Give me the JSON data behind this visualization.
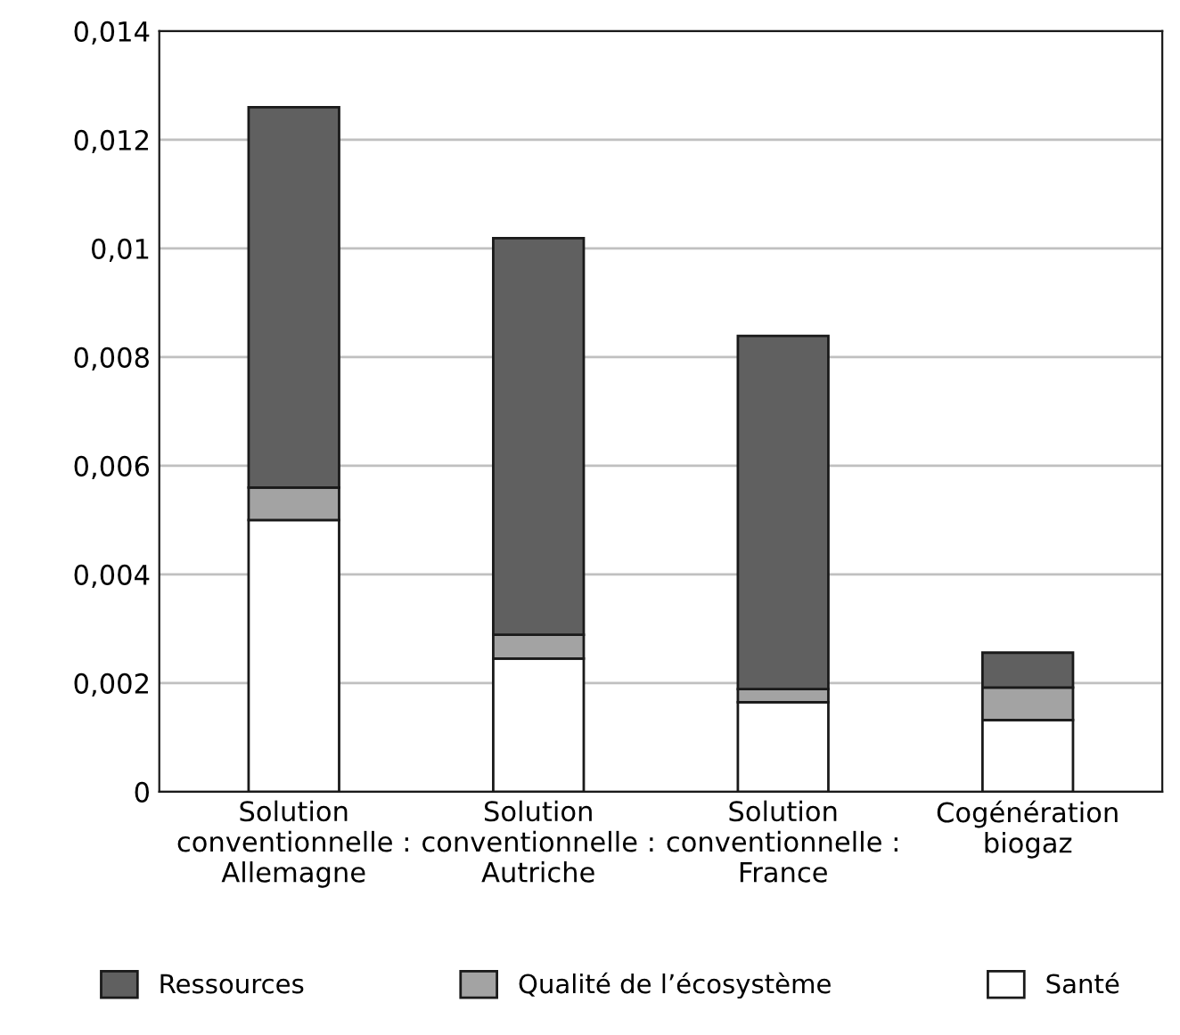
{
  "chart_data": {
    "type": "bar",
    "stacked": true,
    "categories": [
      "Solution\nconventionnelle :\nAllemagne",
      "Solution\nconventionnelle :\nAutriche",
      "Solution\nconventionnelle :\nFrance",
      "Cogénération\nbiogaz"
    ],
    "series": [
      {
        "name": "Santé",
        "color": "#ffffff",
        "values": [
          0.005,
          0.00245,
          0.00165,
          0.00132
        ]
      },
      {
        "name": "Qualité de l’écosystème",
        "color": "#a3a3a3",
        "values": [
          0.0006,
          0.00044,
          0.00024,
          0.0006
        ]
      },
      {
        "name": "Ressources",
        "color": "#606060",
        "values": [
          0.007,
          0.0073,
          0.0065,
          0.00064
        ]
      }
    ],
    "ylim": [
      0,
      0.014
    ],
    "yticks": [
      0,
      {
        "value": 0.002,
        "label": "0,002"
      },
      {
        "value": 0.004,
        "label": "0,004"
      },
      {
        "value": 0.006,
        "label": "0,006"
      },
      {
        "value": 0.008,
        "label": "0,008"
      },
      {
        "value": 0.01,
        "label": "0,01"
      },
      {
        "value": 0.012,
        "label": "0,012"
      },
      {
        "value": 0.014,
        "label": "0,014"
      }
    ],
    "grid": "y",
    "legend": "bottom"
  }
}
